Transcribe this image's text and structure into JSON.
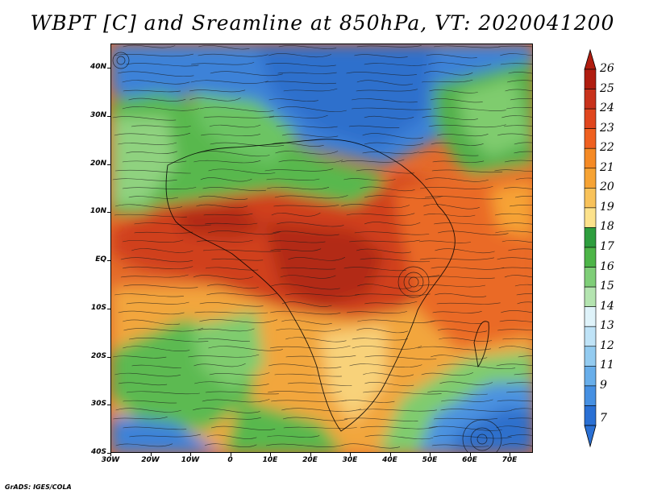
{
  "title": "WBPT [C] and Sreamline at 850hPa, VT: 2020041200",
  "credit": "GrADS: IGES/COLA",
  "map": {
    "lat_labels": [
      "40N",
      "30N",
      "20N",
      "10N",
      "EQ",
      "10S",
      "20S",
      "30S",
      "40S"
    ],
    "lon_labels": [
      "30W",
      "20W",
      "10W",
      "0",
      "10E",
      "20E",
      "30E",
      "40E",
      "50E",
      "60E",
      "70E"
    ],
    "regions": [
      {
        "name": "north-africa-cold",
        "color": "#3b7ed6"
      },
      {
        "name": "sahara-green",
        "color": "#58b84a"
      },
      {
        "name": "arabia-green",
        "color": "#4fb04a"
      },
      {
        "name": "equatorial-hot",
        "color": "#c8321c"
      },
      {
        "name": "south-atlantic-cold",
        "color": "#4a8fe0"
      },
      {
        "name": "indian-ocean-cold",
        "color": "#3a7fd8"
      }
    ]
  },
  "colorbar": {
    "labels": [
      "26",
      "25",
      "24",
      "23",
      "22",
      "21",
      "20",
      "19",
      "18",
      "17",
      "16",
      "15",
      "14",
      "13",
      "12",
      "11",
      "9",
      "7"
    ],
    "colors": [
      "#b01d10",
      "#c8321c",
      "#e0461e",
      "#ef6020",
      "#f58a25",
      "#f6a334",
      "#f8c25a",
      "#fce28c",
      "#2e9e3e",
      "#4db548",
      "#7fce78",
      "#b4e4b0",
      "#dff3fa",
      "#bfe3f7",
      "#93cbf0",
      "#68aeea",
      "#4690e2",
      "#2a70d4"
    ]
  }
}
